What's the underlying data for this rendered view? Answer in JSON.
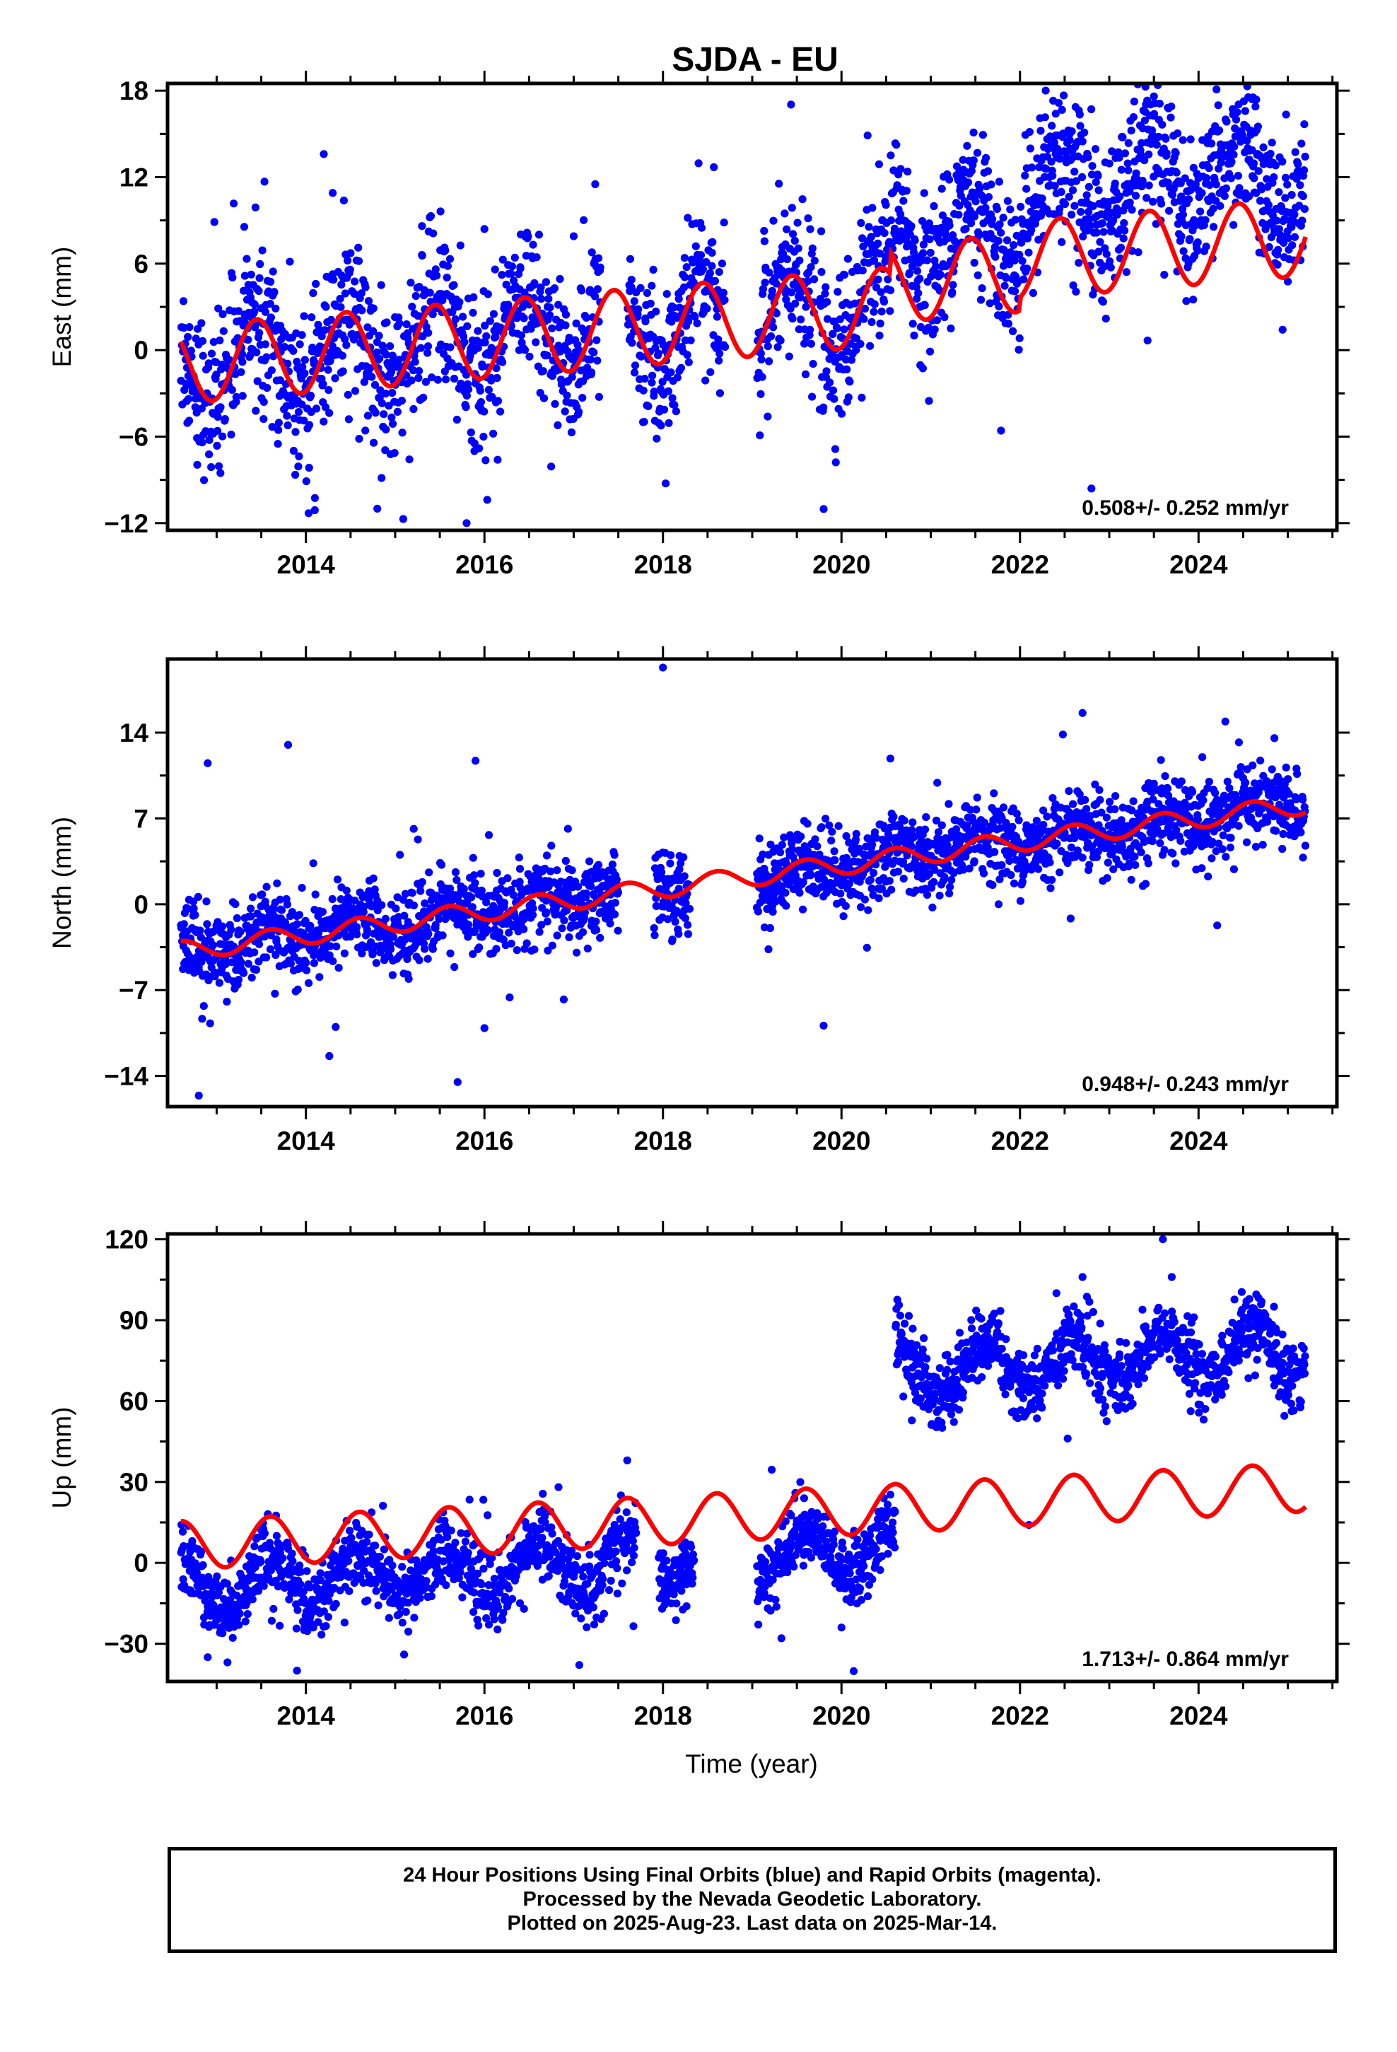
{
  "title": "SJDA - EU",
  "xlabel": "Time (year)",
  "colors": {
    "final_orbits": "#0000ff",
    "model_fit": "#ff0000",
    "frame": "#000000"
  },
  "chart_data": [
    {
      "type": "scatter",
      "name": "east",
      "ylabel": "East (mm)",
      "rate_text": "0.508+/- 0.252 mm/yr",
      "xlim": [
        2012.45,
        2025.55
      ],
      "ylim": [
        -12.5,
        18.5
      ],
      "x_ticks": [
        2014,
        2016,
        2018,
        2020,
        2022,
        2024
      ],
      "y_ticks": [
        -12,
        -6,
        0,
        6,
        12,
        18
      ],
      "y_tick_labels": [
        "−12",
        "−6",
        "0",
        "6",
        "12",
        "18"
      ],
      "data_start": 2012.6,
      "data_end": 2025.2,
      "gaps": [
        [
          2017.3,
          2017.6
        ],
        [
          2018.7,
          2019.05
        ],
        [
          2019.7,
          2019.75
        ]
      ],
      "fit": {
        "intercept": -1.0,
        "slope": 0.508,
        "annual_amplitude": 2.7,
        "annual_peak": 0.45,
        "ref_year": 2012.6
      },
      "offsets": [
        {
          "start": 2020.55,
          "value": 4.5
        },
        {
          "start": 2022.0,
          "value": 2.5
        }
      ],
      "scatter_sd": 2.6,
      "outliers": [
        [
          2014.2,
          13.6
        ],
        [
          2014.3,
          10.9
        ],
        [
          2015.4,
          9.3
        ],
        [
          2015.3,
          6.6
        ],
        [
          2016.0,
          8.4
        ],
        [
          2017.0,
          7.9
        ],
        [
          2022.4,
          16.4
        ],
        [
          2023.5,
          17.6
        ],
        [
          2024.6,
          17.4
        ],
        [
          2022.8,
          -9.6
        ],
        [
          2015.8,
          -12.0
        ],
        [
          2014.1,
          -11.1
        ],
        [
          2014.8,
          -11.0
        ]
      ]
    },
    {
      "type": "scatter",
      "name": "north",
      "ylabel": "North (mm)",
      "rate_text": "0.948+/- 0.243 mm/yr",
      "xlim": [
        2012.45,
        2025.55
      ],
      "ylim": [
        -16.5,
        20
      ],
      "x_ticks": [
        2014,
        2016,
        2018,
        2020,
        2022,
        2024
      ],
      "y_ticks": [
        -14,
        -7,
        0,
        7,
        14
      ],
      "y_tick_labels": [
        "−14",
        "−7",
        "0",
        "7",
        "14"
      ],
      "data_start": 2012.6,
      "data_end": 2025.2,
      "gaps": [
        [
          2017.5,
          2017.9
        ],
        [
          2018.3,
          2019.05
        ]
      ],
      "fit": {
        "intercept": -3.8,
        "slope": 0.948,
        "annual_amplitude": 0.8,
        "annual_peak": 0.6,
        "ref_year": 2012.6
      },
      "offsets": [],
      "scatter_sd": 1.6,
      "outliers": [
        [
          2018.0,
          19.3
        ],
        [
          2022.7,
          15.6
        ],
        [
          2024.3,
          14.9
        ],
        [
          2012.9,
          11.5
        ],
        [
          2013.8,
          13.0
        ],
        [
          2015.9,
          11.7
        ],
        [
          2015.7,
          -14.5
        ],
        [
          2012.8,
          -15.6
        ],
        [
          2019.8,
          -9.9
        ],
        [
          2016.0,
          -10.1
        ]
      ]
    },
    {
      "type": "scatter",
      "name": "up",
      "ylabel": "Up (mm)",
      "rate_text": "1.713+/- 0.864 mm/yr",
      "xlim": [
        2012.45,
        2025.55
      ],
      "ylim": [
        -44,
        122
      ],
      "x_ticks": [
        2014,
        2016,
        2018,
        2020,
        2022,
        2024
      ],
      "y_ticks": [
        -30,
        0,
        30,
        60,
        90,
        120
      ],
      "y_tick_labels": [
        "−30",
        "0",
        "30",
        "60",
        "90",
        "120"
      ],
      "data_start": 2012.6,
      "data_end": 2025.2,
      "gaps": [
        [
          2017.7,
          2017.95
        ],
        [
          2018.35,
          2019.05
        ]
      ],
      "fit": {
        "intercept": 6.5,
        "slope": 1.713,
        "annual_amplitude": 9.0,
        "annual_peak": 0.6,
        "ref_year": 2012.6
      },
      "offsets": [
        {
          "start": 2020.6,
          "value": 66
        }
      ],
      "fit_offsets": [],
      "data_bias": -15,
      "scatter_sd": 6.5,
      "outliers": [
        [
          2023.6,
          120
        ],
        [
          2023.7,
          106
        ],
        [
          2022.7,
          106
        ],
        [
          2017.6,
          38
        ],
        [
          2013.9,
          -40
        ],
        [
          2012.9,
          -35
        ],
        [
          2015.1,
          -34
        ],
        [
          2020.0,
          -24
        ]
      ]
    }
  ],
  "footer": {
    "line1": "24 Hour Positions Using Final Orbits (blue) and Rapid Orbits (magenta).",
    "line2": "Processed by the Nevada Geodetic Laboratory.",
    "line3": "Plotted on 2025-Aug-23. Last data on 2025-Mar-14."
  }
}
